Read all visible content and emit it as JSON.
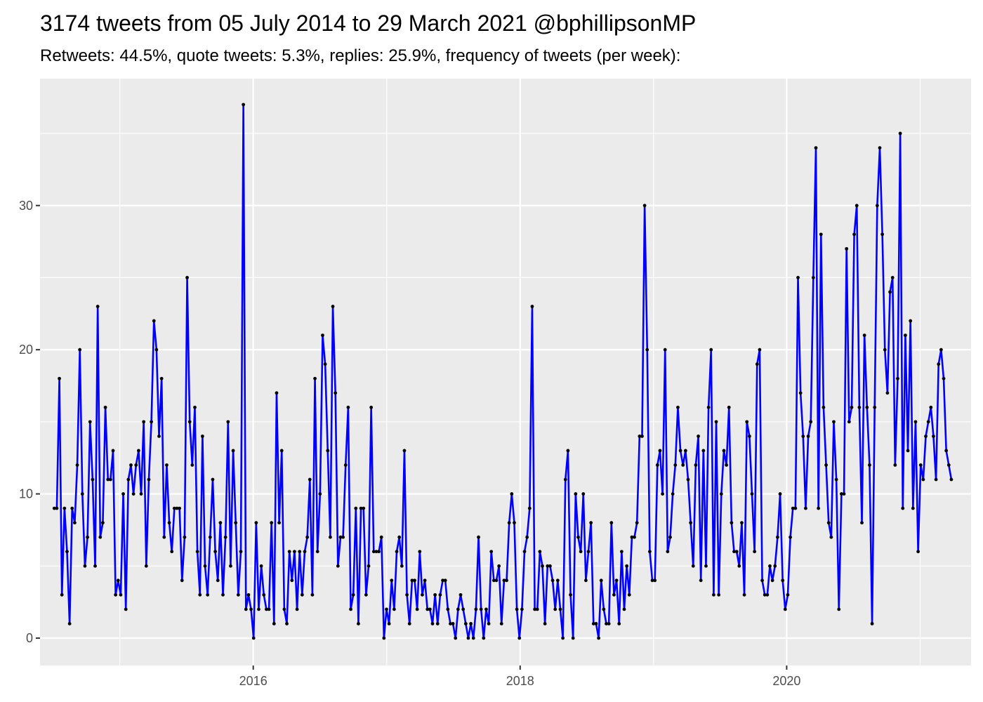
{
  "chart_data": {
    "type": "line",
    "title": "3174 tweets from 05 July 2014 to 29 March 2021 @bphillipsonMP",
    "subtitle": "Retweets: 44.5%, quote tweets: 5.3%, replies: 25.9%, frequency of tweets (per week):",
    "xlabel": "",
    "ylabel": "",
    "x_range": [
      "2014-05-27",
      "2021-05-20"
    ],
    "ylim": [
      -1.9,
      38.8
    ],
    "x_ticks": [
      "2016-01-01",
      "2018-01-01",
      "2020-01-01"
    ],
    "x_tick_labels": [
      "2016",
      "2018",
      "2020"
    ],
    "y_ticks": [
      0,
      10,
      20,
      30
    ],
    "y_tick_labels": [
      "0",
      "10",
      "20",
      "30"
    ],
    "grid": true,
    "background": "#ebebeb",
    "grid_color": "#ffffff",
    "series": [
      {
        "color": "#0000ff",
        "point_color": "#000000",
        "start_week": "2014-07-05",
        "step_days": 7,
        "values": [
          9,
          9,
          18,
          3,
          9,
          6,
          1,
          9,
          8,
          12,
          20,
          10,
          5,
          7,
          15,
          11,
          5,
          23,
          7,
          8,
          16,
          11,
          11,
          13,
          3,
          4,
          3,
          10,
          2,
          11,
          12,
          10,
          12,
          13,
          10,
          15,
          5,
          11,
          15,
          22,
          20,
          14,
          18,
          7,
          12,
          8,
          6,
          9,
          9,
          9,
          4,
          7,
          25,
          15,
          12,
          16,
          6,
          3,
          14,
          5,
          3,
          7,
          11,
          6,
          4,
          8,
          3,
          7,
          15,
          5,
          13,
          8,
          3,
          6,
          37,
          2,
          3,
          2,
          0,
          8,
          2,
          5,
          3,
          2,
          2,
          8,
          1,
          17,
          8,
          13,
          2,
          1,
          6,
          4,
          6,
          2,
          6,
          3,
          6,
          7,
          11,
          3,
          18,
          6,
          10,
          21,
          19,
          13,
          7,
          23,
          17,
          5,
          7,
          7,
          12,
          16,
          2,
          3,
          9,
          1,
          9,
          9,
          3,
          5,
          16,
          6,
          6,
          6,
          7,
          0,
          2,
          1,
          4,
          2,
          6,
          7,
          5,
          13,
          3,
          1,
          4,
          4,
          2,
          6,
          3,
          4,
          2,
          2,
          1,
          3,
          1,
          3,
          4,
          4,
          2,
          1,
          1,
          0,
          2,
          3,
          2,
          1,
          0,
          1,
          0,
          2,
          7,
          2,
          0,
          2,
          1,
          6,
          4,
          4,
          5,
          1,
          4,
          4,
          8,
          10,
          8,
          2,
          0,
          2,
          6,
          7,
          9,
          23,
          2,
          2,
          6,
          5,
          1,
          5,
          5,
          4,
          2,
          4,
          2,
          0,
          11,
          13,
          3,
          0,
          10,
          7,
          6,
          10,
          4,
          6,
          8,
          1,
          1,
          0,
          4,
          2,
          1,
          1,
          8,
          3,
          4,
          1,
          6,
          2,
          5,
          3,
          7,
          7,
          8,
          14,
          14,
          30,
          20,
          6,
          4,
          4,
          12,
          13,
          10,
          20,
          6,
          7,
          10,
          12,
          16,
          13,
          12,
          13,
          11,
          8,
          5,
          12,
          14,
          4,
          13,
          5,
          16,
          20,
          3,
          15,
          3,
          10,
          13,
          12,
          16,
          8,
          6,
          6,
          5,
          8,
          3,
          15,
          14,
          10,
          6,
          19,
          20,
          4,
          3,
          3,
          5,
          4,
          5,
          7,
          10,
          4,
          2,
          3,
          7,
          9,
          9,
          25,
          17,
          14,
          9,
          14,
          15,
          25,
          34,
          9,
          28,
          16,
          12,
          8,
          7,
          15,
          11,
          2,
          10,
          10,
          27,
          15,
          16,
          28,
          30,
          16,
          8,
          21,
          16,
          12,
          1,
          16,
          30,
          34,
          28,
          20,
          17,
          24,
          25,
          12,
          18,
          35,
          9,
          21,
          13,
          22,
          9,
          15,
          6,
          12,
          11,
          14,
          15,
          16,
          14,
          11,
          19,
          20,
          18,
          13,
          12,
          11
        ]
      }
    ]
  }
}
